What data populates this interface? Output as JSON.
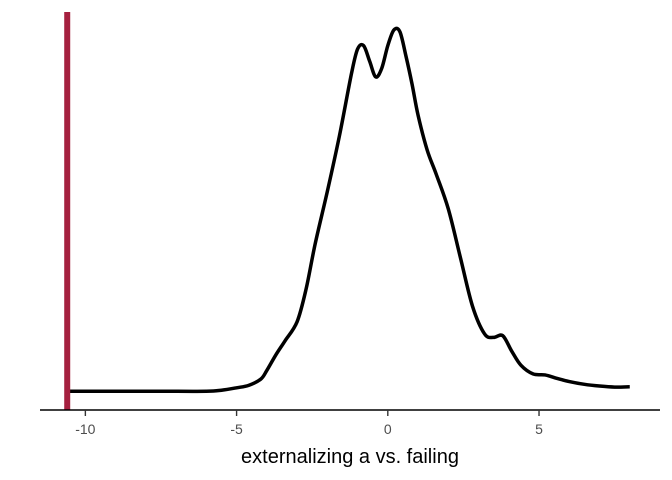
{
  "chart_data": {
    "type": "line",
    "title": "",
    "xlabel": "externalizing a vs. failing",
    "ylabel": "",
    "xlim": [
      -11.5,
      9
    ],
    "ylim": [
      0,
      1
    ],
    "grid": false,
    "x_ticks": [
      -10,
      -5,
      0,
      5
    ],
    "x_tick_labels": [
      "-10",
      "-5",
      "0",
      "5"
    ],
    "series": [
      {
        "kind": "density",
        "color": "#000000",
        "x": [
          -10.6,
          -9.0,
          -7.5,
          -6.0,
          -5.5,
          -5.0,
          -4.6,
          -4.2,
          -4.0,
          -3.7,
          -3.4,
          -3.0,
          -2.7,
          -2.4,
          -2.0,
          -1.6,
          -1.2,
          -1.0,
          -0.8,
          -0.6,
          -0.4,
          -0.2,
          0.0,
          0.2,
          0.4,
          0.6,
          0.8,
          1.0,
          1.3,
          1.6,
          2.0,
          2.4,
          2.8,
          3.2,
          3.5,
          3.8,
          4.1,
          4.4,
          4.8,
          5.2,
          5.6,
          6.0,
          6.5,
          7.0,
          7.5,
          8.0
        ],
        "y": [
          0.005,
          0.005,
          0.005,
          0.005,
          0.008,
          0.015,
          0.022,
          0.04,
          0.065,
          0.11,
          0.15,
          0.205,
          0.3,
          0.43,
          0.58,
          0.74,
          0.92,
          0.99,
          1.0,
          0.955,
          0.91,
          0.935,
          1.0,
          1.045,
          1.04,
          0.97,
          0.89,
          0.8,
          0.7,
          0.63,
          0.53,
          0.39,
          0.25,
          0.17,
          0.16,
          0.165,
          0.12,
          0.08,
          0.055,
          0.052,
          0.042,
          0.033,
          0.025,
          0.02,
          0.017,
          0.018
        ]
      }
    ],
    "vline": {
      "x": -10.6,
      "color": "#a5203f"
    }
  }
}
